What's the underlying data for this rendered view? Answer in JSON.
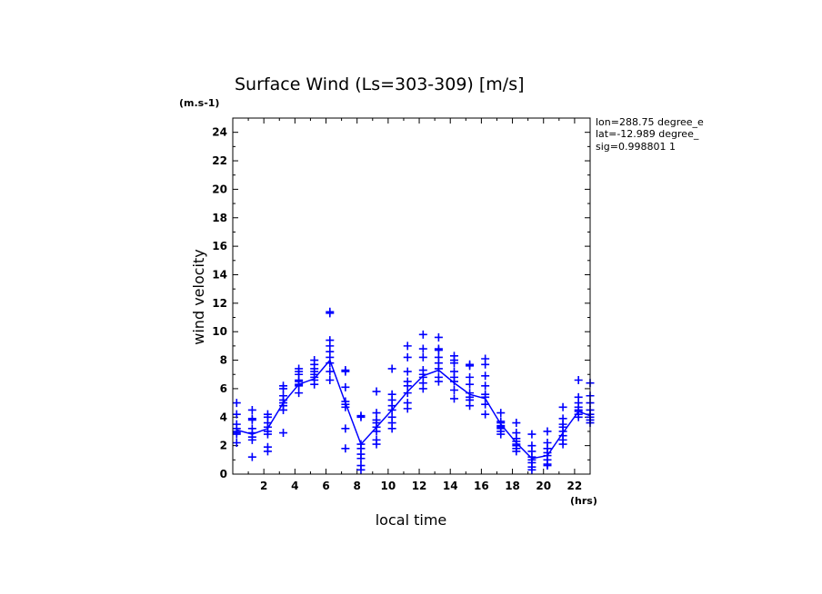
{
  "chart_data": {
    "type": "scatter",
    "title": "Surface Wind  (Ls=303-309) [m/s]",
    "xlabel": "local time",
    "ylabel": "wind velocity",
    "x_unit": "(hrs)",
    "y_unit": "(m.s-1)",
    "xlim": [
      0,
      23
    ],
    "ylim": [
      0,
      25
    ],
    "xticks": [
      2,
      4,
      6,
      8,
      10,
      12,
      14,
      16,
      18,
      20,
      22
    ],
    "yticks": [
      0,
      2,
      4,
      6,
      8,
      10,
      12,
      14,
      16,
      18,
      20,
      22,
      24
    ],
    "grid": false,
    "info": [
      "lon=288.75 degree_e",
      "lat=-12.989 degree_",
      "sig=0.998801 1"
    ],
    "color": "#0000ff",
    "mean_line": {
      "name": "mean",
      "x": [
        0.25,
        1.25,
        2.25,
        3.25,
        4.25,
        5.25,
        6.25,
        7.25,
        8.25,
        9.25,
        10.25,
        11.25,
        12.25,
        13.25,
        14.25,
        15.25,
        16.25,
        17.25,
        18.25,
        19.25,
        20.25,
        21.25,
        22.25,
        23
      ],
      "y": [
        3.1,
        2.8,
        3.2,
        5.0,
        6.3,
        6.7,
        8.0,
        5.0,
        2.1,
        3.3,
        4.5,
        5.8,
        6.9,
        7.3,
        6.4,
        5.6,
        5.3,
        3.5,
        2.2,
        1.1,
        1.3,
        2.9,
        4.4,
        4.1
      ]
    },
    "scatter": {
      "name": "daily values",
      "points": [
        [
          0.25,
          5.0
        ],
        [
          0.25,
          4.2
        ],
        [
          0.25,
          3.5
        ],
        [
          0.25,
          3.2
        ],
        [
          0.25,
          3.0
        ],
        [
          0.25,
          2.9
        ],
        [
          0.25,
          2.8
        ],
        [
          0.25,
          2.2
        ],
        [
          1.25,
          4.5
        ],
        [
          1.25,
          3.9
        ],
        [
          1.25,
          3.8
        ],
        [
          1.25,
          3.2
        ],
        [
          1.25,
          2.9
        ],
        [
          1.25,
          2.6
        ],
        [
          1.25,
          2.4
        ],
        [
          1.25,
          1.2
        ],
        [
          2.25,
          4.2
        ],
        [
          2.25,
          4.0
        ],
        [
          2.25,
          3.6
        ],
        [
          2.25,
          3.3
        ],
        [
          2.25,
          3.0
        ],
        [
          2.25,
          2.8
        ],
        [
          2.25,
          1.9
        ],
        [
          2.25,
          1.6
        ],
        [
          3.25,
          6.2
        ],
        [
          3.25,
          6.0
        ],
        [
          3.25,
          5.5
        ],
        [
          3.25,
          5.2
        ],
        [
          3.25,
          5.0
        ],
        [
          3.25,
          4.8
        ],
        [
          3.25,
          4.5
        ],
        [
          3.25,
          2.9
        ],
        [
          4.25,
          7.4
        ],
        [
          4.25,
          7.2
        ],
        [
          4.25,
          7.0
        ],
        [
          4.25,
          6.6
        ],
        [
          4.25,
          6.5
        ],
        [
          4.25,
          6.3
        ],
        [
          4.25,
          6.2
        ],
        [
          4.25,
          5.7
        ],
        [
          5.25,
          8.0
        ],
        [
          5.25,
          7.7
        ],
        [
          5.25,
          7.4
        ],
        [
          5.25,
          7.2
        ],
        [
          5.25,
          7.0
        ],
        [
          5.25,
          6.8
        ],
        [
          5.25,
          6.6
        ],
        [
          5.25,
          6.3
        ],
        [
          6.25,
          11.4
        ],
        [
          6.25,
          11.3
        ],
        [
          6.25,
          9.4
        ],
        [
          6.25,
          9.0
        ],
        [
          6.25,
          8.6
        ],
        [
          6.25,
          8.2
        ],
        [
          6.25,
          7.8
        ],
        [
          6.25,
          7.2
        ],
        [
          6.25,
          6.6
        ],
        [
          7.25,
          7.3
        ],
        [
          7.25,
          7.2
        ],
        [
          7.25,
          6.1
        ],
        [
          7.25,
          5.1
        ],
        [
          7.25,
          4.9
        ],
        [
          7.25,
          4.7
        ],
        [
          7.25,
          3.2
        ],
        [
          7.25,
          1.8
        ],
        [
          8.25,
          4.1
        ],
        [
          8.25,
          4.0
        ],
        [
          8.25,
          2.1
        ],
        [
          8.25,
          1.8
        ],
        [
          8.25,
          1.4
        ],
        [
          8.25,
          1.1
        ],
        [
          8.25,
          0.6
        ],
        [
          8.25,
          0.3
        ],
        [
          9.25,
          5.8
        ],
        [
          9.25,
          4.3
        ],
        [
          9.25,
          3.8
        ],
        [
          9.25,
          3.6
        ],
        [
          9.25,
          3.3
        ],
        [
          9.25,
          3.0
        ],
        [
          9.25,
          2.4
        ],
        [
          9.25,
          2.1
        ],
        [
          10.25,
          7.4
        ],
        [
          10.25,
          5.6
        ],
        [
          10.25,
          5.2
        ],
        [
          10.25,
          4.8
        ],
        [
          10.25,
          4.5
        ],
        [
          10.25,
          4.0
        ],
        [
          10.25,
          3.6
        ],
        [
          10.25,
          3.2
        ],
        [
          11.25,
          9.0
        ],
        [
          11.25,
          8.2
        ],
        [
          11.25,
          7.2
        ],
        [
          11.25,
          6.5
        ],
        [
          11.25,
          6.2
        ],
        [
          11.25,
          5.7
        ],
        [
          11.25,
          5.0
        ],
        [
          11.25,
          4.6
        ],
        [
          12.25,
          9.8
        ],
        [
          12.25,
          8.8
        ],
        [
          12.25,
          8.2
        ],
        [
          12.25,
          7.3
        ],
        [
          12.25,
          7.0
        ],
        [
          12.25,
          6.8
        ],
        [
          12.25,
          6.4
        ],
        [
          12.25,
          6.0
        ],
        [
          13.25,
          9.6
        ],
        [
          13.25,
          8.8
        ],
        [
          13.25,
          8.7
        ],
        [
          13.25,
          8.2
        ],
        [
          13.25,
          7.8
        ],
        [
          13.25,
          7.4
        ],
        [
          13.25,
          6.8
        ],
        [
          13.25,
          6.5
        ],
        [
          14.25,
          8.3
        ],
        [
          14.25,
          8.0
        ],
        [
          14.25,
          7.8
        ],
        [
          14.25,
          7.2
        ],
        [
          14.25,
          6.8
        ],
        [
          14.25,
          6.5
        ],
        [
          14.25,
          5.9
        ],
        [
          14.25,
          5.3
        ],
        [
          15.25,
          7.7
        ],
        [
          15.25,
          7.6
        ],
        [
          15.25,
          6.8
        ],
        [
          15.25,
          6.3
        ],
        [
          15.25,
          5.7
        ],
        [
          15.25,
          5.4
        ],
        [
          15.25,
          5.2
        ],
        [
          15.25,
          4.8
        ],
        [
          16.25,
          8.1
        ],
        [
          16.25,
          7.7
        ],
        [
          16.25,
          6.9
        ],
        [
          16.25,
          6.2
        ],
        [
          16.25,
          5.6
        ],
        [
          16.25,
          5.4
        ],
        [
          16.25,
          4.9
        ],
        [
          16.25,
          4.2
        ],
        [
          17.25,
          4.3
        ],
        [
          17.25,
          3.7
        ],
        [
          17.25,
          3.6
        ],
        [
          17.25,
          3.4
        ],
        [
          17.25,
          3.3
        ],
        [
          17.25,
          3.2
        ],
        [
          17.25,
          3.0
        ],
        [
          17.25,
          2.8
        ],
        [
          18.25,
          3.6
        ],
        [
          18.25,
          2.9
        ],
        [
          18.25,
          2.5
        ],
        [
          18.25,
          2.3
        ],
        [
          18.25,
          2.1
        ],
        [
          18.25,
          2.0
        ],
        [
          18.25,
          1.8
        ],
        [
          18.25,
          1.6
        ],
        [
          19.25,
          2.8
        ],
        [
          19.25,
          2.0
        ],
        [
          19.25,
          1.6
        ],
        [
          19.25,
          1.2
        ],
        [
          19.25,
          1.0
        ],
        [
          19.25,
          0.8
        ],
        [
          19.25,
          0.5
        ],
        [
          19.25,
          0.3
        ],
        [
          20.25,
          3.0
        ],
        [
          20.25,
          2.2
        ],
        [
          20.25,
          1.8
        ],
        [
          20.25,
          1.5
        ],
        [
          20.25,
          1.3
        ],
        [
          20.25,
          1.0
        ],
        [
          20.25,
          0.7
        ],
        [
          20.25,
          0.6
        ],
        [
          21.25,
          4.7
        ],
        [
          21.25,
          3.9
        ],
        [
          21.25,
          3.5
        ],
        [
          21.25,
          3.3
        ],
        [
          21.25,
          3.0
        ],
        [
          21.25,
          2.7
        ],
        [
          21.25,
          2.4
        ],
        [
          21.25,
          2.1
        ],
        [
          22.25,
          6.6
        ],
        [
          22.25,
          5.4
        ],
        [
          22.25,
          5.0
        ],
        [
          22.25,
          4.7
        ],
        [
          22.25,
          4.5
        ],
        [
          22.25,
          4.4
        ],
        [
          22.25,
          4.2
        ],
        [
          22.25,
          4.0
        ],
        [
          23,
          6.4
        ],
        [
          23,
          5.5
        ],
        [
          23,
          5.0
        ],
        [
          23,
          4.5
        ],
        [
          23,
          4.2
        ],
        [
          23,
          4.0
        ],
        [
          23,
          3.8
        ],
        [
          23,
          3.6
        ]
      ]
    }
  }
}
